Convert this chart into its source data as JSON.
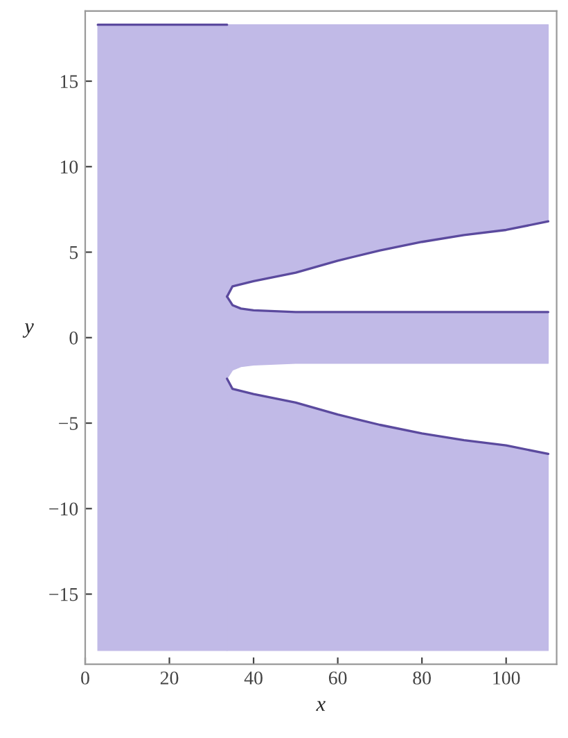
{
  "chart_data": {
    "type": "line",
    "xlabel": "x",
    "ylabel": "y",
    "xlim": [
      0,
      112
    ],
    "ylim": [
      -19.1,
      19.1
    ],
    "xticks": [
      0,
      20,
      40,
      60,
      80,
      100
    ],
    "yticks": [
      -15,
      -10,
      -5,
      0,
      5,
      10,
      15
    ],
    "grid": false,
    "legend": false,
    "marker": "none",
    "series": [
      {
        "color": "#5b4a9e",
        "x": [
          3,
          33.7
        ],
        "values": [
          18.3,
          18.3
        ],
        "lower": [
          -18.3,
          -18.3
        ],
        "upper": [
          18.3,
          18.3
        ]
      },
      {
        "color": "#5b4a9e",
        "x": [
          33.7,
          35,
          40,
          50,
          60,
          70,
          80,
          90,
          100,
          110
        ],
        "values": [
          2.4,
          3.0,
          3.3,
          3.8,
          4.5,
          5.1,
          5.6,
          6.0,
          6.3,
          6.8
        ],
        "lower": [
          2.4,
          3.0,
          3.3,
          3.8,
          4.5,
          5.1,
          5.6,
          6.0,
          6.3,
          6.8
        ],
        "upper": [
          18.3,
          18.3,
          18.3,
          18.3,
          18.3,
          18.3,
          18.3,
          18.3,
          18.3,
          18.3
        ]
      },
      {
        "color": "#5b4a9e",
        "x": [
          33.7,
          35,
          37,
          40,
          50,
          110
        ],
        "values": [
          2.4,
          1.9,
          1.7,
          1.6,
          1.5,
          1.5
        ],
        "lower": [
          -2.4,
          -1.9,
          -1.7,
          -1.6,
          -1.5,
          -1.5
        ],
        "upper": [
          2.4,
          1.9,
          1.7,
          1.6,
          1.5,
          1.5
        ]
      },
      {
        "color": "#5b4a9e",
        "x": [
          33.7,
          35,
          40,
          50,
          60,
          70,
          80,
          90,
          100,
          110
        ],
        "values": [
          -2.4,
          -3.0,
          -3.3,
          -3.8,
          -4.5,
          -5.1,
          -5.6,
          -6.0,
          -6.3,
          -6.8
        ],
        "lower": [
          -18.3,
          -18.3,
          -18.3,
          -18.3,
          -18.3,
          -18.3,
          -18.3,
          -18.3,
          -18.3,
          -18.3
        ],
        "upper": [
          -2.4,
          -3.0,
          -3.3,
          -3.8,
          -4.5,
          -5.1,
          -5.6,
          -6.0,
          -6.3,
          -6.8
        ]
      }
    ]
  }
}
